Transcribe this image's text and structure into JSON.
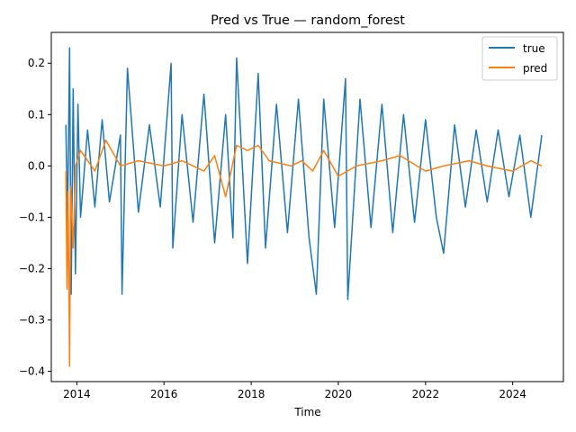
{
  "chart_data": {
    "type": "line",
    "title": "Pred vs True — random_forest",
    "xlabel": "Time",
    "ylabel": "",
    "xlim": [
      "2013-06-01",
      "2025-03-01"
    ],
    "ylim": [
      -0.42,
      0.26
    ],
    "x_ticks": [
      "2014",
      "2016",
      "2018",
      "2020",
      "2022",
      "2024"
    ],
    "y_ticks": [
      "0.2",
      "0.1",
      "0.0",
      "−0.1",
      "−0.2",
      "−0.3",
      "−0.4"
    ],
    "grid": false,
    "legend": "upper-right",
    "series": [
      {
        "name": "true",
        "color": "#1f77b4",
        "points": [
          [
            "2013-10-01",
            0.08
          ],
          [
            "2013-10-15",
            -0.12
          ],
          [
            "2013-11-01",
            0.23
          ],
          [
            "2013-11-15",
            -0.25
          ],
          [
            "2013-12-01",
            0.15
          ],
          [
            "2013-12-20",
            -0.21
          ],
          [
            "2014-01-10",
            0.12
          ],
          [
            "2014-02-01",
            -0.1
          ],
          [
            "2014-04-01",
            0.07
          ],
          [
            "2014-06-01",
            -0.08
          ],
          [
            "2014-08-01",
            0.09
          ],
          [
            "2014-10-01",
            -0.07
          ],
          [
            "2015-01-01",
            0.06
          ],
          [
            "2015-01-15",
            -0.25
          ],
          [
            "2015-03-01",
            0.19
          ],
          [
            "2015-06-01",
            -0.09
          ],
          [
            "2015-09-01",
            0.08
          ],
          [
            "2015-12-01",
            -0.08
          ],
          [
            "2016-03-01",
            0.2
          ],
          [
            "2016-03-15",
            -0.16
          ],
          [
            "2016-06-01",
            0.1
          ],
          [
            "2016-09-01",
            -0.11
          ],
          [
            "2016-12-01",
            0.14
          ],
          [
            "2017-03-01",
            -0.15
          ],
          [
            "2017-06-01",
            0.1
          ],
          [
            "2017-08-01",
            -0.14
          ],
          [
            "2017-09-01",
            0.21
          ],
          [
            "2017-12-01",
            -0.19
          ],
          [
            "2018-03-01",
            0.18
          ],
          [
            "2018-05-01",
            -0.16
          ],
          [
            "2018-08-01",
            0.12
          ],
          [
            "2018-11-01",
            -0.13
          ],
          [
            "2019-02-01",
            0.13
          ],
          [
            "2019-05-01",
            -0.14
          ],
          [
            "2019-07-01",
            -0.25
          ],
          [
            "2019-09-01",
            0.13
          ],
          [
            "2019-12-01",
            -0.12
          ],
          [
            "2020-03-01",
            0.17
          ],
          [
            "2020-03-20",
            -0.26
          ],
          [
            "2020-07-01",
            0.13
          ],
          [
            "2020-10-01",
            -0.12
          ],
          [
            "2021-01-01",
            0.12
          ],
          [
            "2021-04-01",
            -0.13
          ],
          [
            "2021-07-01",
            0.1
          ],
          [
            "2021-10-01",
            -0.11
          ],
          [
            "2022-01-01",
            0.09
          ],
          [
            "2022-04-01",
            -0.1
          ],
          [
            "2022-06-01",
            -0.17
          ],
          [
            "2022-09-01",
            0.08
          ],
          [
            "2022-12-01",
            -0.08
          ],
          [
            "2023-03-01",
            0.07
          ],
          [
            "2023-06-01",
            -0.07
          ],
          [
            "2023-09-01",
            0.07
          ],
          [
            "2023-12-01",
            -0.06
          ],
          [
            "2024-03-01",
            0.06
          ],
          [
            "2024-06-01",
            -0.1
          ],
          [
            "2024-09-01",
            0.06
          ]
        ]
      },
      {
        "name": "pred",
        "color": "#ff7f0e",
        "points": [
          [
            "2013-10-01",
            -0.01
          ],
          [
            "2013-10-10",
            -0.24
          ],
          [
            "2013-10-20",
            -0.05
          ],
          [
            "2013-11-01",
            -0.39
          ],
          [
            "2013-11-10",
            -0.04
          ],
          [
            "2013-12-01",
            -0.16
          ],
          [
            "2013-12-20",
            0.0
          ],
          [
            "2014-02-01",
            0.03
          ],
          [
            "2014-06-01",
            -0.01
          ],
          [
            "2014-09-01",
            0.05
          ],
          [
            "2015-01-01",
            0.0
          ],
          [
            "2015-06-01",
            0.01
          ],
          [
            "2016-01-01",
            0.0
          ],
          [
            "2016-06-01",
            0.01
          ],
          [
            "2016-12-01",
            -0.01
          ],
          [
            "2017-03-01",
            0.02
          ],
          [
            "2017-06-01",
            -0.06
          ],
          [
            "2017-09-01",
            0.04
          ],
          [
            "2017-12-01",
            0.03
          ],
          [
            "2018-03-01",
            0.04
          ],
          [
            "2018-06-01",
            0.01
          ],
          [
            "2018-12-01",
            0.0
          ],
          [
            "2019-03-01",
            0.01
          ],
          [
            "2019-06-01",
            -0.01
          ],
          [
            "2019-09-01",
            0.03
          ],
          [
            "2020-01-01",
            -0.02
          ],
          [
            "2020-06-01",
            0.0
          ],
          [
            "2021-01-01",
            0.01
          ],
          [
            "2021-06-01",
            0.02
          ],
          [
            "2022-01-01",
            -0.01
          ],
          [
            "2022-06-01",
            0.0
          ],
          [
            "2023-01-01",
            0.01
          ],
          [
            "2023-06-01",
            0.0
          ],
          [
            "2024-01-01",
            -0.01
          ],
          [
            "2024-06-01",
            0.01
          ],
          [
            "2024-09-01",
            0.0
          ]
        ]
      }
    ]
  }
}
